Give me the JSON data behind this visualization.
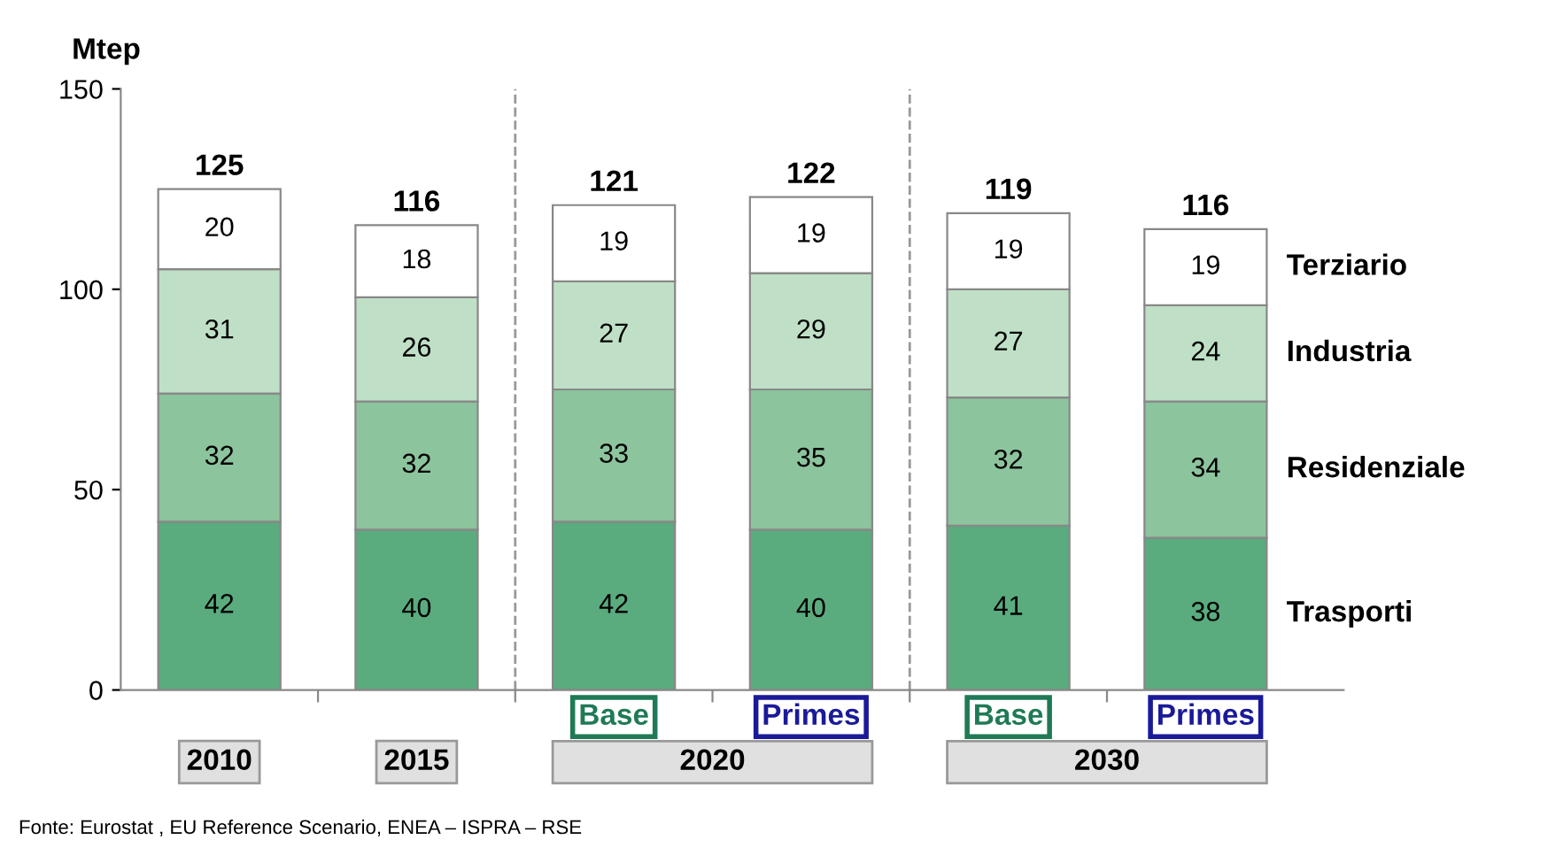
{
  "chart_data": {
    "type": "bar",
    "stacked": true,
    "ylabel": "Mtep",
    "categories": [
      "2010",
      "2015",
      "Base",
      "Primes",
      "Base",
      "Primes"
    ],
    "series": [
      {
        "name": "Trasporti",
        "color": "#5aab7e",
        "values": [
          42,
          40,
          42,
          40,
          41,
          38
        ]
      },
      {
        "name": "Residenziale",
        "color": "#8cc49d",
        "values": [
          32,
          32,
          33,
          35,
          32,
          34
        ]
      },
      {
        "name": "Industria",
        "color": "#bfe0c6",
        "values": [
          31,
          26,
          27,
          29,
          27,
          24
        ]
      },
      {
        "name": "Terziario",
        "color": "#ffffff",
        "values": [
          20,
          18,
          19,
          19,
          19,
          19
        ]
      }
    ],
    "totals": [
      "125",
      "116",
      "121",
      "122",
      "119",
      "116"
    ],
    "data_labels": true,
    "ylim": [
      0,
      150
    ],
    "yticks": [
      0,
      50,
      100,
      150
    ],
    "annotations": [
      "2020",
      "2030",
      "Fonte: Eurostat , EU Reference Scenario, ENEA – ISPRA – RSE"
    ]
  }
}
